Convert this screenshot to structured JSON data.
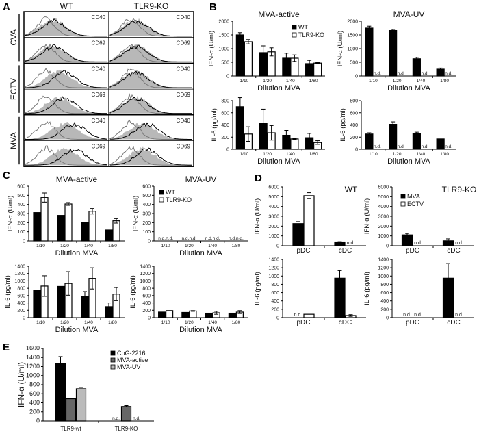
{
  "panels": {
    "A": "A",
    "B": "B",
    "C": "C",
    "D": "D",
    "E": "E"
  },
  "histograms": {
    "columns": [
      "WT",
      "TLR9-KO"
    ],
    "rows": [
      {
        "group": "CVA",
        "markers": [
          "CD40",
          "CD69"
        ]
      },
      {
        "group": "ECTV",
        "markers": [
          "CD40",
          "CD69"
        ]
      },
      {
        "group": "MVA",
        "markers": [
          "CD40",
          "CD69"
        ]
      }
    ]
  },
  "chart_data": [
    {
      "id": "B1",
      "panel": "B",
      "type": "bar",
      "title": "MVA-active",
      "ylabel": "IFN-α (U/ml)",
      "xlabel": "Dilution MVA",
      "categories": [
        "1/10",
        "1/20",
        "1/40",
        "1/80"
      ],
      "ylim": [
        0,
        2000
      ],
      "yticks": [
        0,
        500,
        1000,
        1500,
        2000
      ],
      "legend": true,
      "series": [
        {
          "name": "WT",
          "color": "#000000",
          "values": [
            1500,
            850,
            650,
            450
          ],
          "errors": [
            80,
            250,
            180,
            120
          ]
        },
        {
          "name": "TLR9-KO",
          "color": "#ffffff",
          "values": [
            1250,
            880,
            650,
            470
          ],
          "errors": [
            80,
            150,
            120,
            20
          ]
        }
      ]
    },
    {
      "id": "B2",
      "panel": "B",
      "type": "bar",
      "title": "MVA-UV",
      "ylabel": "IFN-α (U/ml)",
      "xlabel": "Dilution MVA",
      "categories": [
        "1/10",
        "1/20",
        "1/40",
        "1/80"
      ],
      "ylim": [
        0,
        2000
      ],
      "yticks": [
        0,
        500,
        1000,
        1500,
        2000
      ],
      "legend": false,
      "series": [
        {
          "name": "WT",
          "color": "#000000",
          "values": [
            1750,
            1660,
            630,
            250
          ],
          "errors": [
            70,
            40,
            50,
            40
          ]
        },
        {
          "name": "TLR9-KO",
          "color": "#ffffff",
          "values": [
            "n.d.",
            "n.d.",
            "n.d.",
            "n.d."
          ],
          "errors": [
            0,
            0,
            0,
            0
          ]
        }
      ]
    },
    {
      "id": "B3",
      "panel": "B",
      "type": "bar",
      "title": "",
      "ylabel": "IL-6 (pg/ml)",
      "xlabel": "Dilution MVA",
      "categories": [
        "1/10",
        "1/20",
        "1/40",
        "1/80"
      ],
      "ylim": [
        0,
        800
      ],
      "yticks": [
        0,
        200,
        400,
        600,
        800
      ],
      "legend": false,
      "series": [
        {
          "name": "WT",
          "color": "#000000",
          "values": [
            700,
            430,
            230,
            190
          ],
          "errors": [
            150,
            230,
            80,
            70
          ]
        },
        {
          "name": "TLR9-KO",
          "color": "#ffffff",
          "values": [
            250,
            270,
            170,
            110
          ],
          "errors": [
            120,
            120,
            10,
            30
          ]
        }
      ]
    },
    {
      "id": "B4",
      "panel": "B",
      "type": "bar",
      "title": "",
      "ylabel": "IL-6 (pg/ml)",
      "xlabel": "Dilution MVA",
      "categories": [
        "1/10",
        "1/20",
        "1/40",
        "1/80"
      ],
      "ylim": [
        0,
        800
      ],
      "yticks": [
        0,
        200,
        400,
        600,
        800
      ],
      "legend": false,
      "series": [
        {
          "name": "WT",
          "color": "#000000",
          "values": [
            250,
            410,
            260,
            170
          ],
          "errors": [
            20,
            40,
            20,
            0
          ]
        },
        {
          "name": "TLR9-KO",
          "color": "#ffffff",
          "values": [
            "n.d.",
            "n.d.",
            "n.d.",
            "n.d."
          ],
          "errors": [
            0,
            0,
            0,
            0
          ]
        }
      ]
    },
    {
      "id": "C1",
      "panel": "C",
      "type": "bar",
      "title": "MVA-active",
      "ylabel": "IFN-α (U/ml)",
      "xlabel": "Dilution MVA",
      "categories": [
        "1/10",
        "1/20",
        "1/40",
        "1/80"
      ],
      "ylim": [
        0,
        600
      ],
      "yticks": [
        0,
        100,
        200,
        300,
        400,
        500,
        600
      ],
      "legend": false,
      "series": [
        {
          "name": "WT",
          "color": "#000000",
          "values": [
            310,
            280,
            200,
            120
          ],
          "errors": [
            0,
            0,
            0,
            0
          ]
        },
        {
          "name": "TLR9-KO",
          "color": "#ffffff",
          "values": [
            475,
            405,
            325,
            220
          ],
          "errors": [
            50,
            15,
            30,
            25
          ]
        }
      ]
    },
    {
      "id": "C2",
      "panel": "C",
      "type": "bar",
      "title": "MVA-UV",
      "ylabel": "IFN-α (U/ml)",
      "xlabel": "Dilution MVA",
      "categories": [
        "1/10",
        "1/20",
        "1/40",
        "1/80"
      ],
      "ylim": [
        0,
        600
      ],
      "yticks": [
        0,
        100,
        200,
        300,
        400,
        500,
        600
      ],
      "legend": true,
      "series": [
        {
          "name": "WT",
          "color": "#000000",
          "values": [
            "n.d.",
            "n.d.",
            "n.d.",
            "n.d."
          ],
          "errors": [
            0,
            0,
            0,
            0
          ]
        },
        {
          "name": "TLR9-KO",
          "color": "#ffffff",
          "values": [
            "n.d.",
            "n.d.",
            "n.d.",
            "n.d."
          ],
          "errors": [
            0,
            0,
            0,
            0
          ]
        }
      ]
    },
    {
      "id": "C3",
      "panel": "C",
      "type": "bar",
      "title": "",
      "ylabel": "IL-6 (pg/ml)",
      "xlabel": "Dilution MVA",
      "categories": [
        "1/10",
        "1/20",
        "1/40",
        "1/80"
      ],
      "ylim": [
        0,
        1400
      ],
      "yticks": [
        0,
        200,
        400,
        600,
        800,
        1000,
        1200,
        1400
      ],
      "legend": false,
      "series": [
        {
          "name": "WT",
          "color": "#000000",
          "values": [
            750,
            850,
            580,
            300
          ],
          "errors": [
            0,
            0,
            130,
            100
          ]
        },
        {
          "name": "TLR9-KO",
          "color": "#ffffff",
          "values": [
            860,
            930,
            1070,
            640
          ],
          "errors": [
            280,
            320,
            290,
            180
          ]
        }
      ]
    },
    {
      "id": "C4",
      "panel": "C",
      "type": "bar",
      "title": "",
      "ylabel": "IL-6 (pg/ml)",
      "xlabel": "Dilution MVA",
      "categories": [
        "1/10",
        "1/20",
        "1/40",
        "1/80"
      ],
      "ylim": [
        0,
        1400
      ],
      "yticks": [
        0,
        200,
        400,
        600,
        800,
        1000,
        1200,
        1400
      ],
      "legend": false,
      "series": [
        {
          "name": "WT",
          "color": "#000000",
          "values": [
            150,
            140,
            120,
            120
          ],
          "errors": [
            0,
            0,
            0,
            0
          ]
        },
        {
          "name": "TLR9-KO",
          "color": "#ffffff",
          "values": [
            190,
            180,
            130,
            150
          ],
          "errors": [
            0,
            10,
            40,
            40
          ]
        }
      ]
    },
    {
      "id": "D1",
      "panel": "D",
      "type": "bar",
      "title": "WT",
      "ylabel": "IFN-α (U/ml)",
      "xlabel": "",
      "categories": [
        "pDC",
        "cDC"
      ],
      "ylim": [
        0,
        6000
      ],
      "yticks": [
        0,
        1000,
        2000,
        3000,
        4000,
        5000,
        6000
      ],
      "legend": false,
      "series": [
        {
          "name": "MVA",
          "color": "#000000",
          "values": [
            2250,
            380
          ],
          "errors": [
            200,
            30
          ]
        },
        {
          "name": "ECTV",
          "color": "#ffffff",
          "values": [
            5100,
            "n.d."
          ],
          "errors": [
            300,
            0
          ]
        }
      ]
    },
    {
      "id": "D2",
      "panel": "D",
      "type": "bar",
      "title": "TLR9-KO",
      "ylabel": "IFN-α (U/ml)",
      "xlabel": "",
      "categories": [
        "pDC",
        "cDC"
      ],
      "ylim": [
        0,
        6000
      ],
      "yticks": [
        0,
        1000,
        2000,
        3000,
        4000,
        5000,
        6000
      ],
      "legend": true,
      "series": [
        {
          "name": "MVA",
          "color": "#000000",
          "values": [
            1100,
            500
          ],
          "errors": [
            150,
            200
          ]
        },
        {
          "name": "ECTV",
          "color": "#ffffff",
          "values": [
            "n.d.",
            "n.d."
          ],
          "errors": [
            0,
            0
          ]
        }
      ]
    },
    {
      "id": "D3",
      "panel": "D",
      "type": "bar",
      "title": "",
      "ylabel": "IL-6 (pg/ml)",
      "xlabel": "",
      "categories": [
        "pDC",
        "cDC"
      ],
      "ylim": [
        0,
        1400
      ],
      "yticks": [
        0,
        200,
        400,
        600,
        800,
        1000,
        1200,
        1400
      ],
      "legend": false,
      "series": [
        {
          "name": "MVA",
          "color": "#000000",
          "values": [
            "n.d.",
            950
          ],
          "errors": [
            0,
            180
          ]
        },
        {
          "name": "ECTV",
          "color": "#ffffff",
          "values": [
            80,
            50
          ],
          "errors": [
            0,
            20
          ]
        }
      ]
    },
    {
      "id": "D4",
      "panel": "D",
      "type": "bar",
      "title": "",
      "ylabel": "IL-6 (pg/ml)",
      "xlabel": "",
      "categories": [
        "pDC",
        "cDC"
      ],
      "ylim": [
        0,
        1400
      ],
      "yticks": [
        0,
        200,
        400,
        600,
        800,
        1000,
        1200,
        1400
      ],
      "legend": false,
      "series": [
        {
          "name": "MVA",
          "color": "#000000",
          "values": [
            "n.d.",
            950
          ],
          "errors": [
            0,
            350
          ]
        },
        {
          "name": "ECTV",
          "color": "#ffffff",
          "values": [
            "n.d.",
            "n.d."
          ],
          "errors": [
            0,
            0
          ]
        }
      ]
    },
    {
      "id": "E",
      "panel": "E",
      "type": "bar",
      "title": "",
      "ylabel": "IFN-α (U/ml)",
      "xlabel": "",
      "categories": [
        "TLR9-wt",
        "TLR9-KO"
      ],
      "ylim": [
        0,
        1600
      ],
      "yticks": [
        0,
        200,
        400,
        600,
        800,
        1000,
        1200,
        1400,
        1600
      ],
      "legend": true,
      "series": [
        {
          "name": "CpG-2216",
          "color": "#000000",
          "values": [
            1260,
            "n.d."
          ],
          "errors": [
            160,
            0
          ]
        },
        {
          "name": "MVA-active",
          "color": "#666666",
          "values": [
            490,
            320
          ],
          "errors": [
            15,
            20
          ]
        },
        {
          "name": "MVA-UV",
          "color": "#bbbbbb",
          "values": [
            710,
            "n.d."
          ],
          "errors": [
            30,
            0
          ]
        }
      ]
    }
  ]
}
